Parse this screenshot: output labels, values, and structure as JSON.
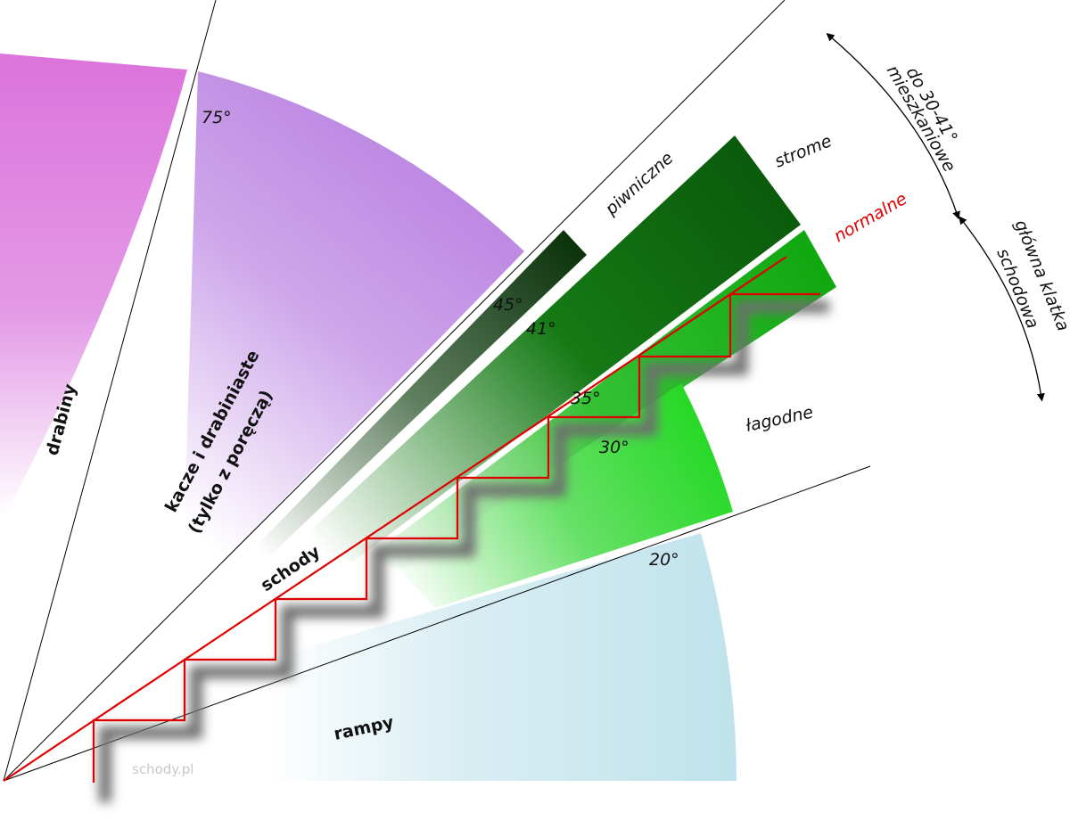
{
  "labels": {
    "ladders": "drabiny",
    "ship_ladders_line1": "kacze i drabiniaste",
    "ship_ladders_line2": "(tylko z poręczą)",
    "stairs": "schody",
    "ramps": "rampy",
    "basement": "piwniczne",
    "steep": "strome",
    "normal": "normalne",
    "gentle": "łagodne",
    "residential_line1": "do 30-41°",
    "residential_line2": "mieszkaniowe",
    "main_staircase_line1": "główna klatka",
    "main_staircase_line2": "schodowa",
    "watermark": "schody.pl"
  },
  "angles": {
    "a75": "75°",
    "a45": "45°",
    "a41": "41°",
    "a35": "35°",
    "a30": "30°",
    "a20": "20°"
  },
  "colors": {
    "ladders": "#dc78dc",
    "ship_ladders": "#b47ae0",
    "basement": "#0e3a0e",
    "steep": "#0a5a0a",
    "normal": "#14aa14",
    "gentle": "#1ed81e",
    "ramps": "#bfe2ec",
    "stair_line": "#e00000"
  }
}
